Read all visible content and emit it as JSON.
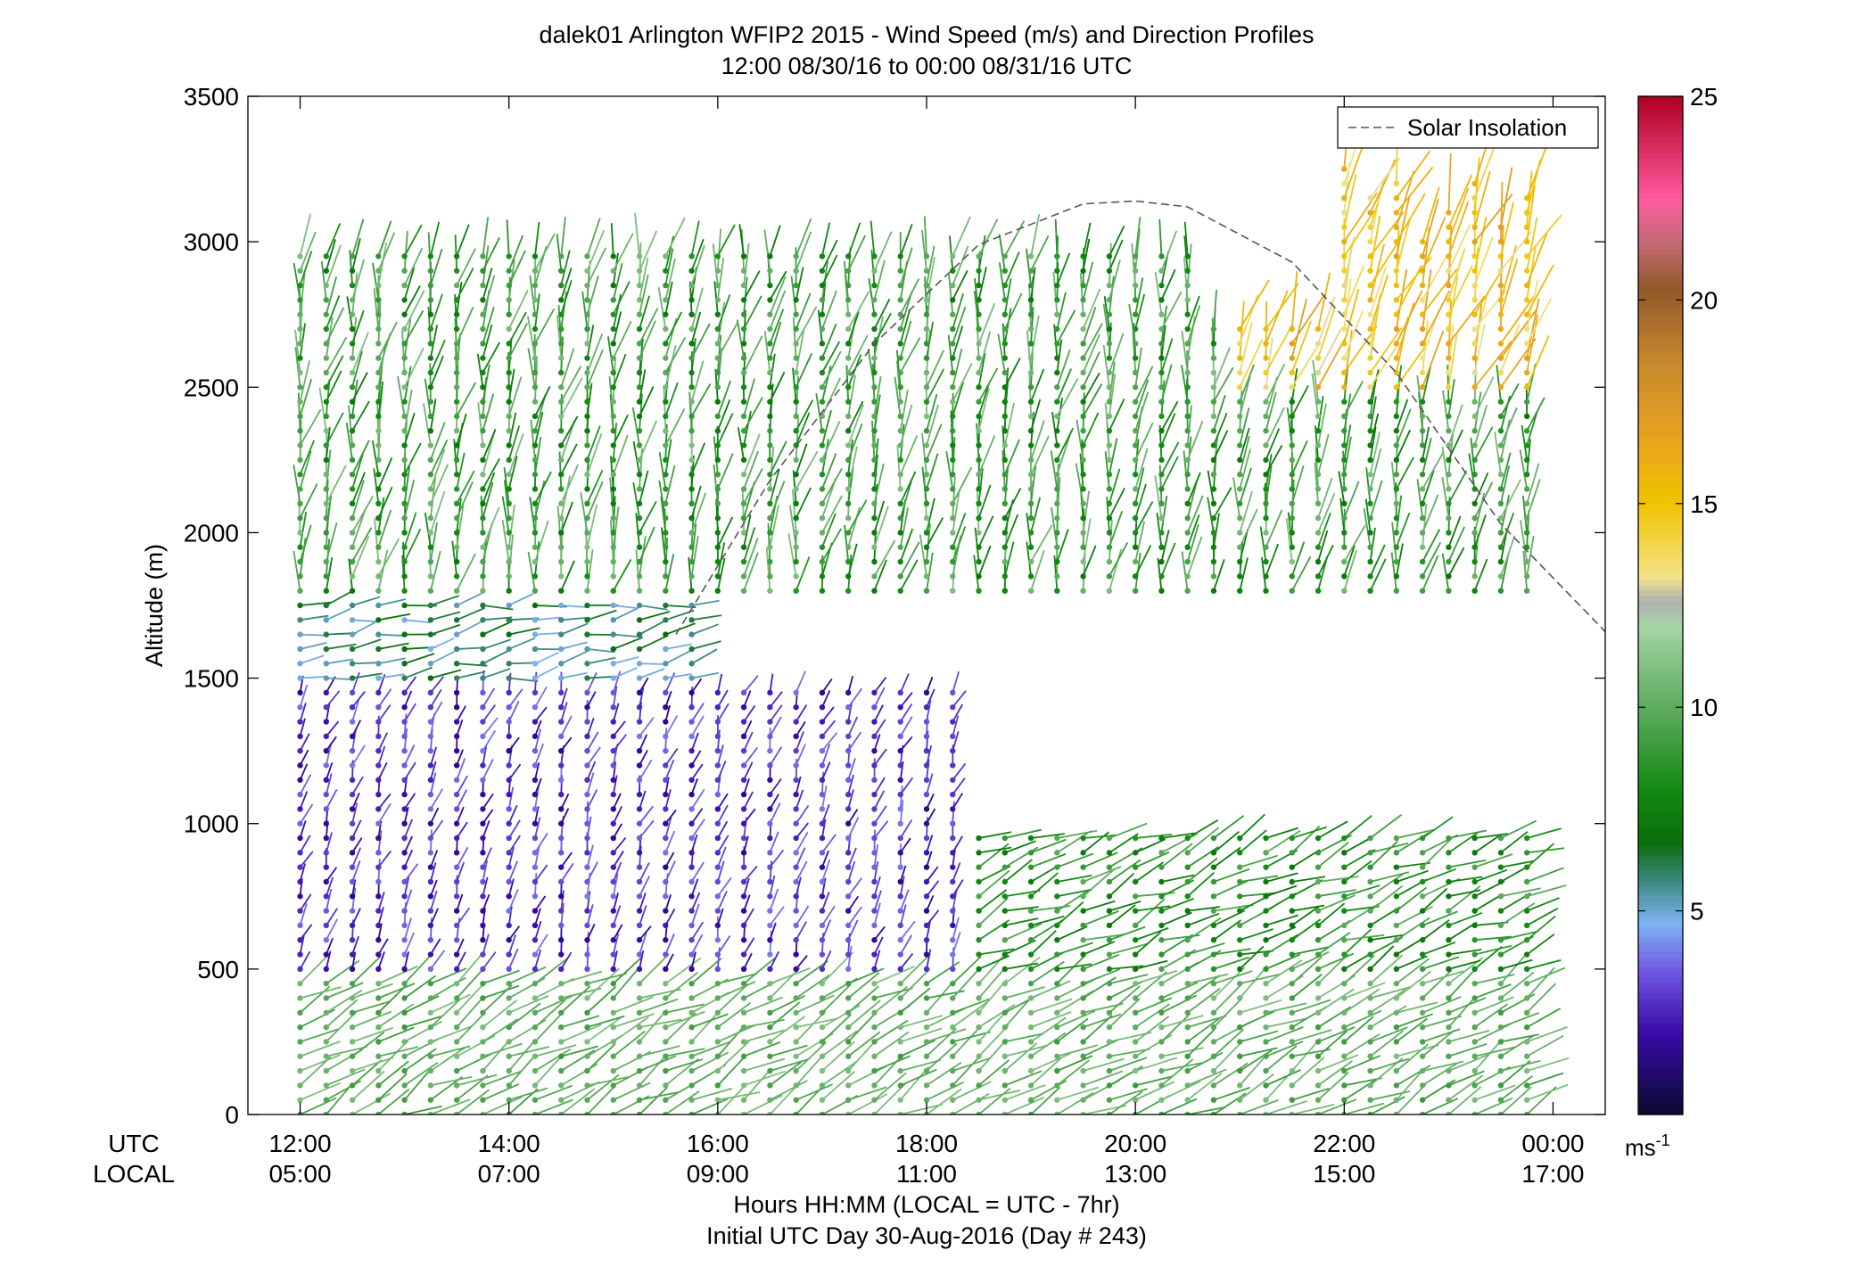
{
  "chart_data": {
    "type": "vector-profile",
    "title": "dalek01 Arlington WFIP2 2015 - Wind Speed (m/s) and Direction Profiles",
    "subtitle": "12:00 08/30/16 to 00:00 08/31/16  UTC",
    "ylabel": "Altitude (m)",
    "ylim": [
      0,
      3500
    ],
    "y_ticks": [
      0,
      500,
      1000,
      1500,
      2000,
      2500,
      3000,
      3500
    ],
    "x_range_hours": [
      11.5,
      24.5
    ],
    "x_ticks": [
      {
        "hour": 12,
        "utc": "12:00",
        "local": "05:00"
      },
      {
        "hour": 14,
        "utc": "14:00",
        "local": "07:00"
      },
      {
        "hour": 16,
        "utc": "16:00",
        "local": "09:00"
      },
      {
        "hour": 18,
        "utc": "18:00",
        "local": "11:00"
      },
      {
        "hour": 20,
        "utc": "20:00",
        "local": "13:00"
      },
      {
        "hour": 22,
        "utc": "22:00",
        "local": "15:00"
      },
      {
        "hour": 24,
        "utc": "00:00",
        "local": "17:00"
      }
    ],
    "x_row_labels": {
      "utc": "UTC",
      "local": "LOCAL"
    },
    "xlabel": "Hours HH:MM  (LOCAL = UTC - 7hr)",
    "xlabel2": "Initial UTC Day 30-Aug-2016 (Day # 243)",
    "legend": {
      "entries": [
        "Solar Insolation"
      ],
      "position": "top-right"
    },
    "solar_insolation": {
      "hours": [
        15.6,
        16.5,
        17.5,
        18.5,
        19.5,
        20.0,
        20.5,
        21.5,
        22.5,
        23.5,
        24.5
      ],
      "altitudes": [
        1650,
        2180,
        2650,
        2990,
        3130,
        3140,
        3120,
        2930,
        2550,
        2030,
        1660
      ]
    },
    "colorbar": {
      "range": [
        0,
        25
      ],
      "ticks": [
        5,
        10,
        15,
        20,
        25
      ],
      "unit": "ms-1",
      "stops": [
        {
          "v": 0,
          "c": "#0a0a2e"
        },
        {
          "v": 2,
          "c": "#3a0aa8"
        },
        {
          "v": 3.5,
          "c": "#6f55e2"
        },
        {
          "v": 4.7,
          "c": "#7fb2f2"
        },
        {
          "v": 5.7,
          "c": "#3f8a84"
        },
        {
          "v": 6.7,
          "c": "#0a6e0a"
        },
        {
          "v": 8,
          "c": "#128a12"
        },
        {
          "v": 9,
          "c": "#3a9a3a"
        },
        {
          "v": 10.5,
          "c": "#6fb46f"
        },
        {
          "v": 12,
          "c": "#a6d4a6"
        },
        {
          "v": 12.6,
          "c": "#b0b0b0"
        },
        {
          "v": 13.2,
          "c": "#f2e38a"
        },
        {
          "v": 15,
          "c": "#f0c400"
        },
        {
          "v": 16.5,
          "c": "#e8a51c"
        },
        {
          "v": 18.5,
          "c": "#c8882c"
        },
        {
          "v": 20.3,
          "c": "#8f5a2a"
        },
        {
          "v": 21.5,
          "c": "#c86a7a"
        },
        {
          "v": 22.5,
          "c": "#ff5aa0"
        },
        {
          "v": 25,
          "c": "#b00020"
        }
      ]
    },
    "profiles": {
      "time_step_hours": 0.25,
      "start_hour": 12.0,
      "end_hour": 23.75,
      "altitude_step_m": 50,
      "regimes": [
        {
          "alt": [
            0,
            500
          ],
          "speed": [
            9,
            11
          ],
          "direction_deg": 240
        },
        {
          "alt": [
            500,
            1500
          ],
          "hours": [
            12,
            18.5
          ],
          "speed": [
            1.5,
            4
          ],
          "direction_deg": 200
        },
        {
          "alt": [
            500,
            1000
          ],
          "hours": [
            18.5,
            24
          ],
          "speed": [
            7,
            10
          ],
          "direction_deg": 245
        },
        {
          "alt": [
            1500,
            1800
          ],
          "hours": [
            12,
            16
          ],
          "speed": [
            4.5,
            7
          ],
          "direction_deg": 260
        },
        {
          "alt": [
            1800,
            3000
          ],
          "speed": [
            7,
            11
          ],
          "direction_deg": 190
        },
        {
          "alt": [
            2500,
            3500
          ],
          "hours": [
            21,
            24
          ],
          "speed": [
            13,
            17
          ],
          "direction_deg": 200
        }
      ]
    }
  }
}
